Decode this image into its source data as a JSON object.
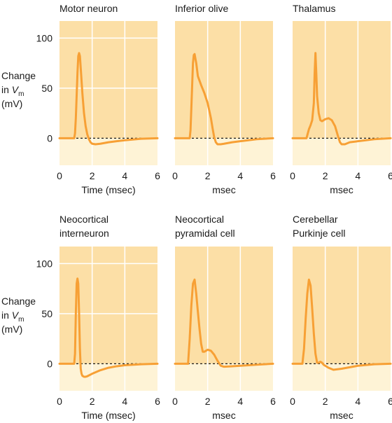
{
  "colors": {
    "above_zero": "#FCDFA6",
    "below_zero": "#FEF3D6",
    "trace": "#F7A035",
    "grid": "#FFFFFF",
    "zero_line": "#1A1A1A"
  },
  "y_axis_label": {
    "line1": "Change",
    "line2_prefix": "in ",
    "line2_var": "V",
    "line2_sub": "m",
    "line3": "(mV)"
  },
  "chart_data": [
    {
      "type": "line",
      "title": [
        "Motor neuron"
      ],
      "xlabel": "Time (msec)",
      "xlim": [
        0,
        6
      ],
      "ylim": [
        -27,
        117
      ],
      "xticks": [
        0,
        2,
        4,
        6
      ],
      "yticks": [
        0,
        50,
        100
      ],
      "grid": true,
      "series": [
        {
          "x": [
            0.0,
            0.9,
            0.95,
            1.0,
            1.1,
            1.15,
            1.2,
            1.25,
            1.3,
            1.4,
            1.5,
            1.6,
            1.7,
            1.8,
            1.9,
            2.0,
            2.2,
            2.5,
            3.0,
            3.5,
            4.0,
            5.0,
            6.0
          ],
          "y": [
            0,
            0,
            5,
            20,
            65,
            82,
            85,
            82,
            70,
            45,
            25,
            12,
            4,
            -1,
            -4,
            -5.5,
            -6,
            -5.5,
            -4,
            -3,
            -2,
            -0.5,
            0
          ]
        }
      ]
    },
    {
      "type": "line",
      "title": [
        "Inferior olive"
      ],
      "xlabel": "msec",
      "xlim": [
        0,
        6
      ],
      "ylim": [
        -27,
        117
      ],
      "xticks": [
        0,
        2,
        4,
        6
      ],
      "yticks": [
        0,
        50,
        100
      ],
      "grid": false,
      "series": [
        {
          "x": [
            0.0,
            0.9,
            0.95,
            1.0,
            1.1,
            1.15,
            1.2,
            1.3,
            1.4,
            1.6,
            1.8,
            2.0,
            2.2,
            2.3,
            2.4,
            2.5,
            2.6,
            2.8,
            3.0,
            3.5,
            4.0,
            5.0,
            6.0
          ],
          "y": [
            0,
            0,
            8,
            30,
            75,
            83,
            84,
            75,
            62,
            53,
            45,
            35,
            20,
            10,
            1,
            -4,
            -6,
            -6,
            -5.5,
            -4,
            -3,
            -1,
            0
          ]
        }
      ]
    },
    {
      "type": "line",
      "title": [
        "Thalamus"
      ],
      "xlabel": "msec",
      "xlim": [
        0,
        6
      ],
      "ylim": [
        -27,
        117
      ],
      "xticks": [
        0,
        2,
        4,
        6
      ],
      "yticks": [
        0,
        50,
        100
      ],
      "grid": false,
      "series": [
        {
          "x": [
            0.0,
            0.85,
            0.9,
            1.0,
            1.1,
            1.2,
            1.3,
            1.35,
            1.4,
            1.45,
            1.5,
            1.6,
            1.7,
            1.8,
            2.0,
            2.2,
            2.4,
            2.6,
            2.8,
            2.9,
            3.0,
            3.2,
            3.5,
            4.0,
            5.0,
            6.0
          ],
          "y": [
            0,
            0,
            3,
            9,
            13,
            18,
            35,
            65,
            85,
            65,
            42,
            25,
            18,
            17,
            19,
            20,
            18,
            12,
            1,
            -4,
            -6,
            -6,
            -4,
            -3,
            -1,
            0
          ]
        }
      ]
    },
    {
      "type": "line",
      "title": [
        "Neocortical",
        "interneuron"
      ],
      "xlabel": "Time (msec)",
      "xlim": [
        0,
        6
      ],
      "ylim": [
        -27,
        117
      ],
      "xticks": [
        0,
        2,
        4,
        6
      ],
      "yticks": [
        0,
        50,
        100
      ],
      "grid": true,
      "series": [
        {
          "x": [
            0.0,
            0.9,
            0.95,
            1.0,
            1.05,
            1.1,
            1.15,
            1.2,
            1.25,
            1.3,
            1.35,
            1.4,
            1.5,
            1.6,
            1.7,
            2.0,
            2.5,
            3.0,
            3.5,
            4.0,
            5.0,
            6.0
          ],
          "y": [
            0,
            0,
            10,
            50,
            80,
            85,
            80,
            50,
            15,
            -5,
            -10,
            -12,
            -13,
            -13,
            -12.5,
            -10,
            -6.5,
            -4,
            -2.5,
            -1.5,
            -0.5,
            0
          ]
        }
      ]
    },
    {
      "type": "line",
      "title": [
        "Neocortical",
        "pyramidal cell"
      ],
      "xlabel": "msec",
      "xlim": [
        0,
        6
      ],
      "ylim": [
        -27,
        117
      ],
      "xticks": [
        0,
        2,
        4,
        6
      ],
      "yticks": [
        0,
        50,
        100
      ],
      "grid": false,
      "series": [
        {
          "x": [
            0.0,
            0.8,
            0.9,
            1.0,
            1.1,
            1.2,
            1.3,
            1.4,
            1.5,
            1.6,
            1.7,
            1.8,
            2.0,
            2.2,
            2.4,
            2.6,
            2.8,
            3.0,
            3.5,
            4.0,
            5.0,
            6.0
          ],
          "y": [
            0,
            0,
            25,
            58,
            80,
            84,
            70,
            52,
            35,
            20,
            12,
            12,
            14,
            13,
            9,
            3,
            -2,
            -3,
            -2.5,
            -2,
            -1,
            0
          ]
        }
      ]
    },
    {
      "type": "line",
      "title": [
        "Cerebellar",
        "Purkinje cell"
      ],
      "xlabel": "msec",
      "xlim": [
        0,
        6
      ],
      "ylim": [
        -27,
        117
      ],
      "xticks": [
        0,
        2,
        4,
        6
      ],
      "yticks": [
        0,
        50,
        100
      ],
      "grid": false,
      "series": [
        {
          "x": [
            0.0,
            0.6,
            0.7,
            0.8,
            0.9,
            1.0,
            1.1,
            1.2,
            1.3,
            1.4,
            1.5,
            1.6,
            1.7,
            1.8,
            1.9,
            2.0,
            2.2,
            2.5,
            3.0,
            3.5,
            4.0,
            5.0,
            6.0
          ],
          "y": [
            0,
            0,
            15,
            45,
            70,
            84,
            78,
            55,
            30,
            10,
            1,
            1,
            2,
            1,
            -1,
            -2,
            -4,
            -6,
            -5,
            -3.5,
            -2,
            -0.5,
            0
          ]
        }
      ]
    }
  ]
}
